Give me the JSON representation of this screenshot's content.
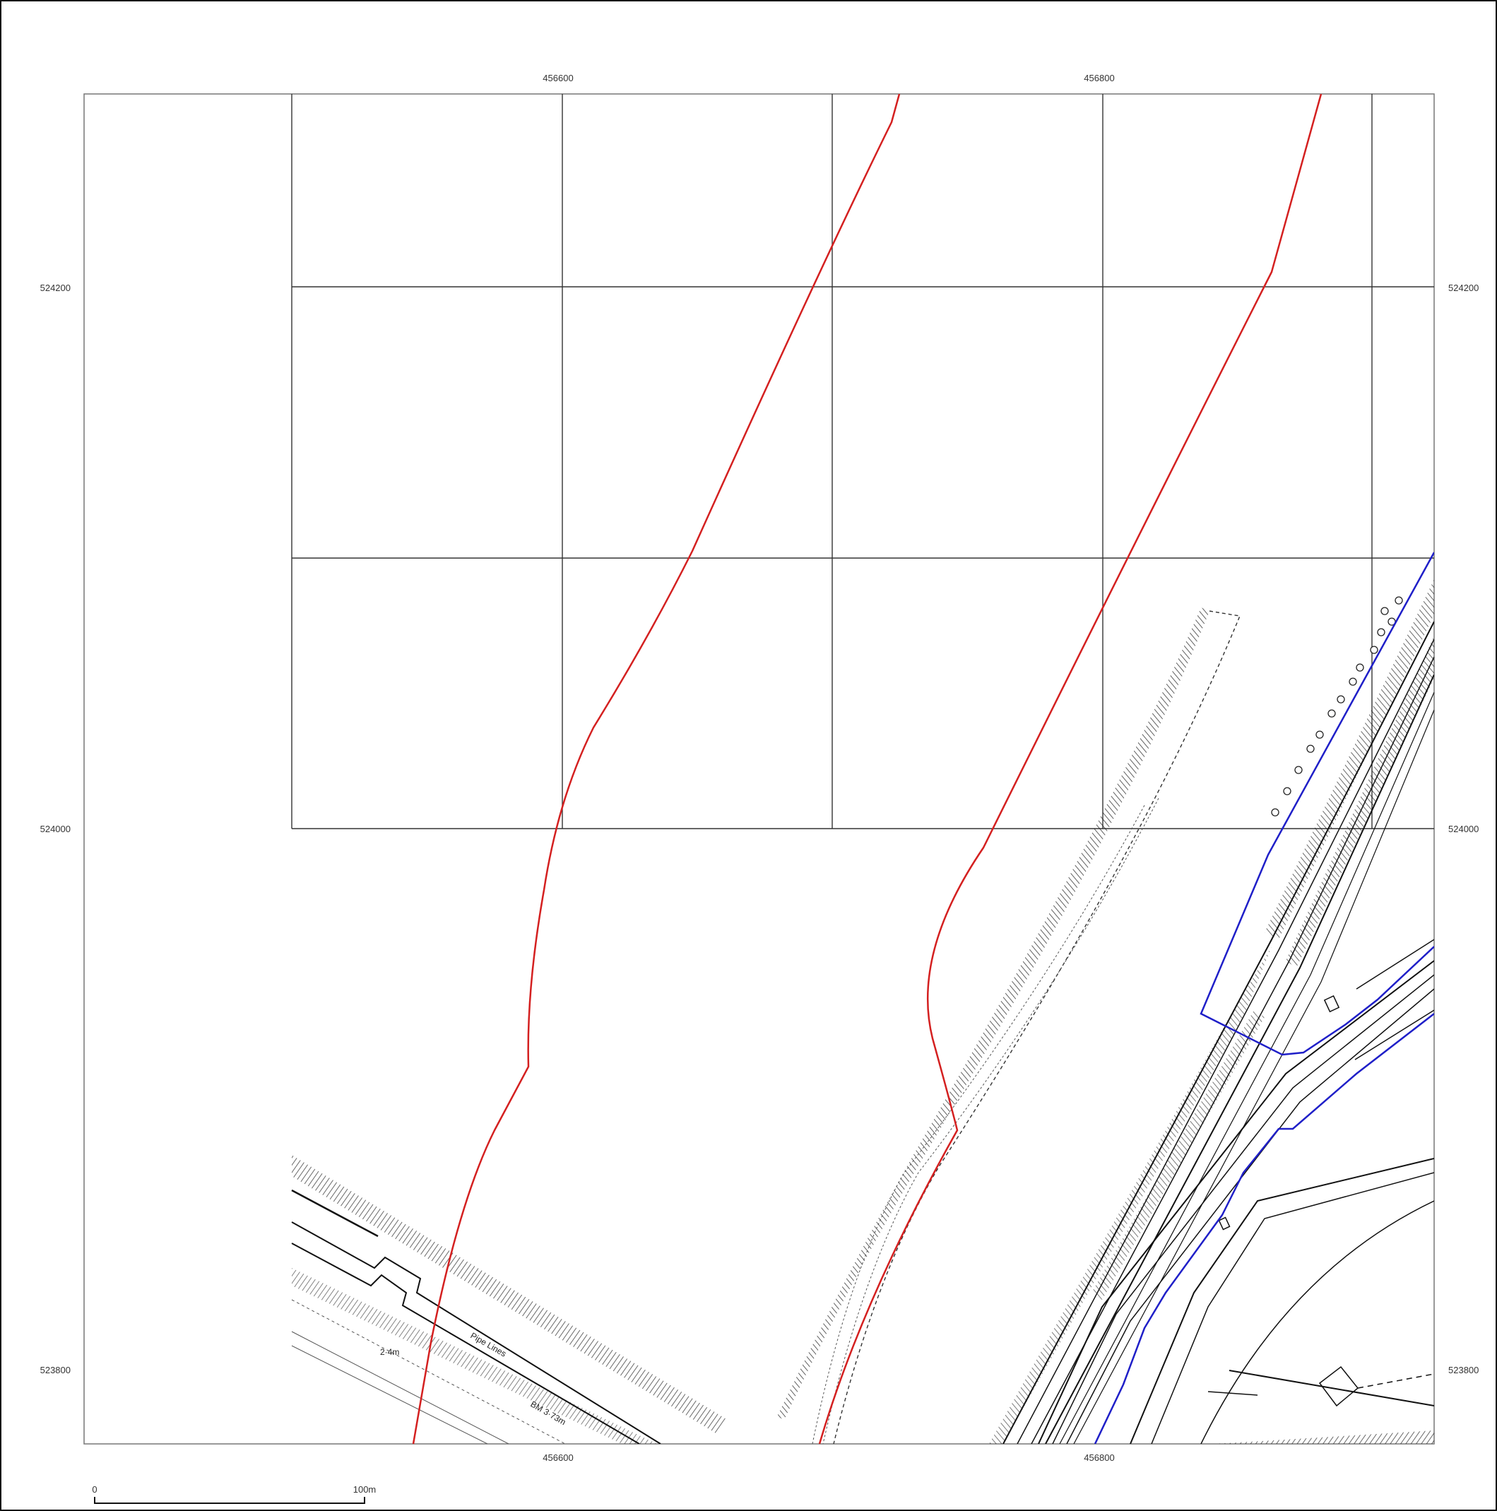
{
  "grid_labels": {
    "top": [
      "456600",
      "456800"
    ],
    "bottom": [
      "456600",
      "456800"
    ],
    "left": [
      "524200",
      "524000",
      "523800"
    ],
    "right": [
      "524200",
      "524000",
      "523800"
    ]
  },
  "scale_bar": {
    "start": "0",
    "end": "100m"
  },
  "map_text": {
    "pipe_lines": "Pipe Lines",
    "benchmark": "BM 3·73m",
    "spot_height": "2·4m"
  },
  "colors": {
    "study_boundary": "#d42020",
    "site_boundary": "#1f1fc8",
    "basemap": "#1a1a1a",
    "grid": "#333333"
  }
}
